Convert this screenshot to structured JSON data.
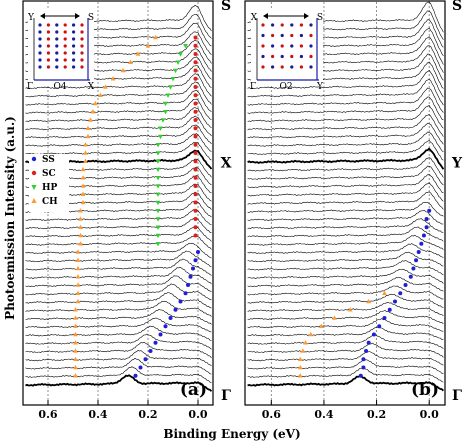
{
  "figure": {
    "ylabel": "Photoemission Intensity (a.u.)",
    "xlabel": "Binding Energy (eV)"
  },
  "chart_data": [
    {
      "type": "line",
      "panel_label": "(a)",
      "xlabel": "Binding Energy (eV)",
      "ylabel": "Photoemission Intensity (a.u.)",
      "xlim": [
        0.7,
        -0.06
      ],
      "x_tick_labels": [
        "0.6",
        "0.4",
        "0.2",
        "0.0"
      ],
      "x_ticks": [
        0.6,
        0.4,
        0.2,
        0.0
      ],
      "grid": "vertical dashed lines at ticks",
      "k_path_labels": [
        "S",
        "X",
        "Γ"
      ],
      "inset": {
        "corner_labels": [
          "Y",
          "S",
          "Γ",
          "X"
        ],
        "caption": "O4",
        "dot_colors": [
          "#1a1a9e",
          "#d01010"
        ]
      },
      "legend": {
        "position": "left-middle",
        "entries": [
          {
            "label": "SS",
            "color": "#1f1fd6",
            "marker": "circle"
          },
          {
            "label": "SC",
            "color": "#dd1f1f",
            "marker": "circle"
          },
          {
            "label": "HP",
            "color": "#2fcf2f",
            "marker": "triangle-down"
          },
          {
            "label": "CH",
            "color": "#ff9a33",
            "marker": "triangle-up"
          }
        ]
      },
      "spectra": {
        "count": 45,
        "highlighted_indices": [
          17,
          44
        ],
        "top_to_bottom": "S to Γ"
      },
      "series": [
        {
          "name": "SS",
          "color": "#1f1fd6",
          "marker": "circle",
          "points": [
            [
              0.0,
              28
            ],
            [
              0.01,
              29
            ],
            [
              0.02,
              30
            ],
            [
              0.03,
              31
            ],
            [
              0.04,
              32
            ],
            [
              0.05,
              33
            ],
            [
              0.07,
              34
            ],
            [
              0.09,
              35
            ],
            [
              0.11,
              36
            ],
            [
              0.13,
              37
            ],
            [
              0.15,
              38
            ],
            [
              0.17,
              39
            ],
            [
              0.19,
              40
            ],
            [
              0.21,
              41
            ],
            [
              0.23,
              42
            ],
            [
              0.25,
              43
            ]
          ]
        },
        {
          "name": "SC",
          "color": "#dd1f1f",
          "marker": "circle",
          "points": [
            [
              0.01,
              2
            ],
            [
              0.01,
              3
            ],
            [
              0.01,
              4
            ],
            [
              0.01,
              5
            ],
            [
              0.01,
              6
            ],
            [
              0.01,
              7
            ],
            [
              0.01,
              8
            ],
            [
              0.01,
              9
            ],
            [
              0.01,
              10
            ],
            [
              0.01,
              11
            ],
            [
              0.01,
              12
            ],
            [
              0.01,
              13
            ],
            [
              0.01,
              14
            ],
            [
              0.01,
              15
            ],
            [
              0.01,
              16
            ],
            [
              0.01,
              17
            ],
            [
              0.01,
              18
            ],
            [
              0.01,
              19
            ],
            [
              0.01,
              20
            ],
            [
              0.01,
              21
            ],
            [
              0.01,
              22
            ],
            [
              0.01,
              23
            ],
            [
              0.01,
              24
            ],
            [
              0.01,
              25
            ],
            [
              0.01,
              26
            ]
          ]
        },
        {
          "name": "HP",
          "color": "#2fcf2f",
          "marker": "triangle-down",
          "points": [
            [
              0.05,
              3
            ],
            [
              0.07,
              4
            ],
            [
              0.08,
              5
            ],
            [
              0.09,
              6
            ],
            [
              0.1,
              7
            ],
            [
              0.11,
              8
            ],
            [
              0.12,
              9
            ],
            [
              0.13,
              10
            ],
            [
              0.13,
              11
            ],
            [
              0.14,
              12
            ],
            [
              0.15,
              13
            ],
            [
              0.15,
              14
            ],
            [
              0.16,
              15
            ],
            [
              0.16,
              16
            ],
            [
              0.16,
              17
            ],
            [
              0.16,
              18
            ],
            [
              0.16,
              19
            ],
            [
              0.16,
              20
            ],
            [
              0.16,
              21
            ],
            [
              0.16,
              22
            ],
            [
              0.16,
              23
            ],
            [
              0.16,
              24
            ],
            [
              0.16,
              25
            ],
            [
              0.16,
              26
            ],
            [
              0.16,
              27
            ]
          ]
        },
        {
          "name": "CH",
          "color": "#ff9a33",
          "marker": "triangle-up",
          "points": [
            [
              0.17,
              2
            ],
            [
              0.2,
              3
            ],
            [
              0.24,
              4
            ],
            [
              0.27,
              5
            ],
            [
              0.3,
              6
            ],
            [
              0.34,
              7
            ],
            [
              0.37,
              8
            ],
            [
              0.39,
              9
            ],
            [
              0.41,
              10
            ],
            [
              0.42,
              11
            ],
            [
              0.43,
              12
            ],
            [
              0.44,
              13
            ],
            [
              0.44,
              14
            ],
            [
              0.45,
              15
            ],
            [
              0.45,
              16
            ],
            [
              0.45,
              17
            ],
            [
              0.46,
              18
            ],
            [
              0.46,
              19
            ],
            [
              0.46,
              20
            ],
            [
              0.46,
              21
            ],
            [
              0.46,
              22
            ],
            [
              0.47,
              23
            ],
            [
              0.47,
              24
            ],
            [
              0.47,
              25
            ],
            [
              0.47,
              26
            ],
            [
              0.47,
              27
            ],
            [
              0.48,
              28
            ],
            [
              0.48,
              29
            ],
            [
              0.48,
              30
            ],
            [
              0.48,
              31
            ],
            [
              0.48,
              32
            ],
            [
              0.48,
              33
            ],
            [
              0.48,
              34
            ],
            [
              0.49,
              35
            ],
            [
              0.49,
              36
            ],
            [
              0.49,
              37
            ],
            [
              0.49,
              38
            ],
            [
              0.49,
              39
            ],
            [
              0.49,
              40
            ],
            [
              0.49,
              41
            ],
            [
              0.49,
              42
            ],
            [
              0.49,
              43
            ]
          ]
        }
      ]
    },
    {
      "type": "line",
      "panel_label": "(b)",
      "xlabel": "Binding Energy (eV)",
      "xlim": [
        0.7,
        -0.06
      ],
      "x_tick_labels": [
        "0.6",
        "0.4",
        "0.2",
        "0.0"
      ],
      "x_ticks": [
        0.6,
        0.4,
        0.2,
        0.0
      ],
      "grid": "vertical dashed lines at ticks",
      "k_path_labels": [
        "S",
        "Y",
        "Γ"
      ],
      "inset": {
        "corner_labels": [
          "X",
          "S",
          "Γ",
          "Y"
        ],
        "caption": "O2",
        "dot_colors": [
          "#1a1a9e",
          "#d01010"
        ]
      },
      "spectra": {
        "count": 45,
        "highlighted_indices": [
          17,
          44
        ],
        "top_to_bottom": "S to Γ"
      },
      "series": [
        {
          "name": "SS",
          "color": "#1f1fd6",
          "marker": "circle",
          "points": [
            [
              0.0,
              23
            ],
            [
              0.01,
              24
            ],
            [
              0.01,
              25
            ],
            [
              0.02,
              26
            ],
            [
              0.03,
              27
            ],
            [
              0.04,
              28
            ],
            [
              0.05,
              29
            ],
            [
              0.06,
              30
            ],
            [
              0.07,
              31
            ],
            [
              0.09,
              32
            ],
            [
              0.11,
              33
            ],
            [
              0.13,
              34
            ],
            [
              0.15,
              35
            ],
            [
              0.17,
              36
            ],
            [
              0.19,
              37
            ],
            [
              0.21,
              38
            ],
            [
              0.23,
              39
            ],
            [
              0.24,
              40
            ],
            [
              0.25,
              41
            ],
            [
              0.25,
              42
            ],
            [
              0.26,
              43
            ]
          ]
        },
        {
          "name": "CH",
          "color": "#ff9a33",
          "marker": "triangle-up",
          "points": [
            [
              0.17,
              33
            ],
            [
              0.23,
              34
            ],
            [
              0.3,
              35
            ],
            [
              0.36,
              36
            ],
            [
              0.41,
              37
            ],
            [
              0.45,
              38
            ],
            [
              0.47,
              39
            ],
            [
              0.48,
              40
            ],
            [
              0.49,
              41
            ],
            [
              0.49,
              42
            ],
            [
              0.49,
              43
            ]
          ]
        }
      ]
    }
  ]
}
